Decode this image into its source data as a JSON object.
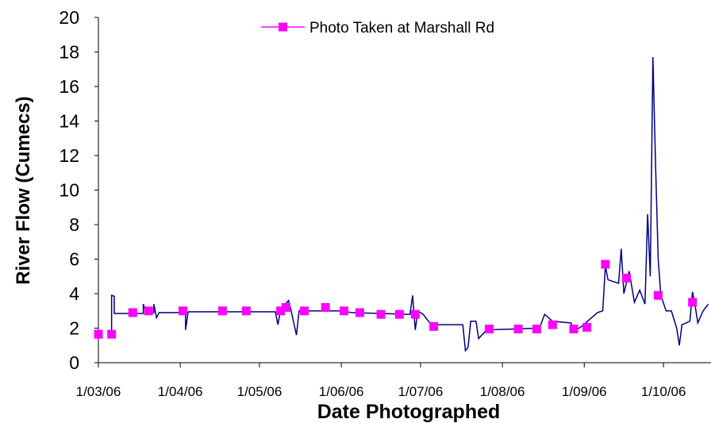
{
  "chart_data": {
    "type": "line",
    "x_label": "Date Photographed",
    "y_label": "River Flow (Cumecs)",
    "xlim": [
      "2006-03-01",
      "2006-10-19"
    ],
    "xticks": [
      {
        "value": "2006-03-01",
        "label": "1/03/06"
      },
      {
        "value": "2006-04-01",
        "label": "1/04/06"
      },
      {
        "value": "2006-05-01",
        "label": "1/05/06"
      },
      {
        "value": "2006-06-01",
        "label": "1/06/06"
      },
      {
        "value": "2006-07-01",
        "label": "1/07/06"
      },
      {
        "value": "2006-08-01",
        "label": "1/08/06"
      },
      {
        "value": "2006-09-01",
        "label": "1/09/06"
      },
      {
        "value": "2006-10-01",
        "label": "1/10/06"
      }
    ],
    "ylim": [
      0,
      20
    ],
    "yticks": [
      0,
      2,
      4,
      6,
      8,
      10,
      12,
      14,
      16,
      18,
      20
    ],
    "grid": false,
    "legend": "top",
    "series": [
      {
        "mode": "line",
        "color": "#000080",
        "x": [
          "2006-03-06",
          "2006-03-06",
          "2006-03-07",
          "2006-03-07",
          "2006-03-18",
          "2006-03-18",
          "2006-03-19",
          "2006-03-22",
          "2006-03-22",
          "2006-03-23",
          "2006-03-24",
          "2006-04-03",
          "2006-04-03",
          "2006-04-04",
          "2006-05-07",
          "2006-05-08",
          "2006-05-09",
          "2006-05-12",
          "2006-05-13",
          "2006-05-15",
          "2006-05-16",
          "2006-06-01",
          "2006-06-05",
          "2006-06-27",
          "2006-06-28",
          "2006-06-29",
          "2006-06-30",
          "2006-07-02",
          "2006-07-05",
          "2006-07-17",
          "2006-07-18",
          "2006-07-19",
          "2006-07-20",
          "2006-07-22",
          "2006-07-23",
          "2006-07-26",
          "2006-08-15",
          "2006-08-17",
          "2006-08-20",
          "2006-08-27",
          "2006-08-28",
          "2006-08-31",
          "2006-09-06",
          "2006-09-08",
          "2006-09-09",
          "2006-09-10",
          "2006-09-14",
          "2006-09-15",
          "2006-09-16",
          "2006-09-18",
          "2006-09-20",
          "2006-09-22",
          "2006-09-24",
          "2006-09-25",
          "2006-09-26",
          "2006-09-27",
          "2006-09-28",
          "2006-09-29",
          "2006-09-30",
          "2006-10-02",
          "2006-10-04",
          "2006-10-06",
          "2006-10-07",
          "2006-10-08",
          "2006-10-11",
          "2006-10-12",
          "2006-10-13",
          "2006-10-14",
          "2006-10-16",
          "2006-10-18"
        ],
        "values": [
          1.6,
          3.9,
          3.85,
          2.85,
          2.85,
          3.4,
          2.9,
          2.9,
          3.4,
          2.6,
          2.9,
          2.9,
          1.9,
          2.95,
          2.95,
          2.2,
          3.1,
          3.6,
          3.0,
          1.6,
          3.0,
          3.0,
          2.9,
          2.8,
          3.9,
          1.9,
          3.0,
          2.8,
          2.2,
          2.2,
          0.7,
          0.9,
          2.4,
          2.4,
          1.4,
          1.9,
          2.0,
          2.8,
          2.4,
          2.3,
          1.8,
          2.1,
          2.9,
          3.0,
          5.6,
          4.8,
          4.6,
          6.6,
          4.0,
          5.3,
          3.5,
          4.2,
          3.4,
          8.6,
          5.0,
          17.7,
          11.5,
          6.0,
          3.9,
          3.0,
          3.0,
          2.0,
          1.0,
          2.2,
          2.4,
          4.1,
          3.3,
          2.3,
          3.0,
          3.4
        ]
      },
      {
        "name": "Photo Taken at Marshall Rd",
        "mode": "markers",
        "color": "#ff00ff",
        "x": [
          "2006-03-01",
          "2006-03-06",
          "2006-03-14",
          "2006-03-20",
          "2006-04-02",
          "2006-04-17",
          "2006-04-26",
          "2006-05-09",
          "2006-05-11",
          "2006-05-18",
          "2006-05-26",
          "2006-06-02",
          "2006-06-08",
          "2006-06-16",
          "2006-06-23",
          "2006-06-29",
          "2006-07-06",
          "2006-07-27",
          "2006-08-07",
          "2006-08-14",
          "2006-08-20",
          "2006-08-28",
          "2006-09-02",
          "2006-09-09",
          "2006-09-17",
          "2006-09-29",
          "2006-10-12"
        ],
        "values": [
          1.65,
          1.65,
          2.9,
          3.0,
          3.0,
          3.0,
          3.0,
          3.0,
          3.2,
          3.0,
          3.2,
          3.0,
          2.9,
          2.8,
          2.8,
          2.8,
          2.1,
          1.95,
          1.95,
          1.95,
          2.2,
          1.95,
          2.05,
          5.7,
          4.9,
          3.9,
          3.5
        ]
      }
    ]
  }
}
